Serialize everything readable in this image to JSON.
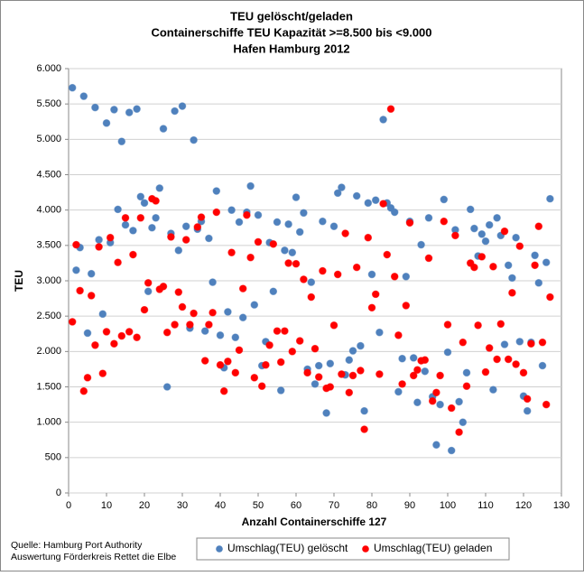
{
  "chart_data": {
    "type": "scatter",
    "title": [
      "TEU gelöscht/geladen",
      "Containerschiffe TEU Kapazität >=8.500 bis <9.000",
      "Hafen Hamburg 2012"
    ],
    "x_label": "Anzahl Containerschiffe 127",
    "y_label": "TEU",
    "notes": [
      "Quelle: Hamburg Port Authority",
      "Auswertung Förderkreis Rettet die Elbe"
    ],
    "x": [
      1,
      2,
      3,
      4,
      5,
      6,
      7,
      8,
      9,
      10,
      11,
      12,
      13,
      14,
      15,
      16,
      17,
      18,
      19,
      20,
      21,
      22,
      23,
      24,
      25,
      26,
      27,
      28,
      29,
      30,
      31,
      32,
      33,
      34,
      35,
      36,
      37,
      38,
      39,
      40,
      41,
      42,
      43,
      44,
      45,
      46,
      47,
      48,
      49,
      50,
      51,
      52,
      53,
      54,
      55,
      56,
      57,
      58,
      59,
      60,
      61,
      62,
      63,
      64,
      65,
      66,
      67,
      68,
      69,
      70,
      71,
      72,
      73,
      74,
      75,
      76,
      77,
      78,
      79,
      80,
      81,
      82,
      83,
      84,
      85,
      86,
      87,
      88,
      89,
      90,
      91,
      92,
      93,
      94,
      95,
      96,
      97,
      98,
      99,
      100,
      101,
      102,
      103,
      104,
      105,
      106,
      107,
      108,
      109,
      110,
      111,
      112,
      113,
      114,
      115,
      116,
      117,
      118,
      119,
      120,
      121,
      122,
      123,
      124,
      125,
      126,
      127
    ],
    "series": [
      {
        "name": "Umschlag(TEU) gelöscht",
        "color": "#4f81bd",
        "values": [
          5730,
          3150,
          3470,
          5610,
          2260,
          3100,
          5450,
          3580,
          2530,
          5230,
          3540,
          5420,
          4010,
          4970,
          3790,
          5380,
          3710,
          5430,
          4190,
          4100,
          2850,
          3750,
          3890,
          4310,
          5150,
          1500,
          3670,
          5400,
          3430,
          5470,
          3770,
          2330,
          4990,
          3730,
          3840,
          2290,
          3600,
          2980,
          4270,
          2230,
          1770,
          2560,
          4000,
          2200,
          3830,
          2480,
          3970,
          4340,
          2660,
          3930,
          1800,
          2140,
          3540,
          2850,
          3830,
          1450,
          3430,
          3800,
          3400,
          4180,
          3690,
          3960,
          1750,
          2980,
          1540,
          1800,
          3840,
          1130,
          1830,
          3770,
          4240,
          4320,
          1670,
          1880,
          2010,
          4200,
          2080,
          1160,
          4100,
          3090,
          4140,
          2270,
          5280,
          4100,
          4030,
          3970,
          1430,
          1900,
          3060,
          3840,
          1910,
          1280,
          3510,
          1720,
          3890,
          1360,
          680,
          1250,
          4150,
          1990,
          600,
          3720,
          1290,
          1000,
          1700,
          4010,
          3740,
          3350,
          3660,
          3560,
          3790,
          1460,
          3890,
          3640,
          2100,
          3220,
          3040,
          3610,
          2140,
          1370,
          1160,
          2130,
          3360,
          2970,
          1800,
          3260,
          4160
        ]
      },
      {
        "name": "Umschlag(TEU) geladen",
        "color": "#ff0000",
        "values": [
          2420,
          3510,
          2860,
          1440,
          1630,
          2790,
          2090,
          3480,
          1690,
          2280,
          3610,
          2110,
          3260,
          2220,
          3890,
          2280,
          3370,
          2200,
          3890,
          2590,
          2970,
          4160,
          4130,
          2880,
          2920,
          2270,
          3620,
          2380,
          2840,
          2630,
          3580,
          2380,
          2540,
          3760,
          3900,
          1870,
          2380,
          2550,
          3970,
          1810,
          1440,
          1860,
          3400,
          1700,
          2020,
          2890,
          3930,
          3330,
          1630,
          3550,
          1510,
          1810,
          2090,
          3520,
          2290,
          1850,
          2290,
          3250,
          2000,
          3240,
          2150,
          3020,
          1700,
          2770,
          2040,
          1640,
          3140,
          1480,
          1500,
          2370,
          3090,
          1680,
          3670,
          1420,
          1660,
          3190,
          1730,
          900,
          3610,
          2620,
          2810,
          1680,
          4090,
          3370,
          5430,
          3060,
          2230,
          1540,
          2650,
          3820,
          1660,
          1740,
          1870,
          1880,
          3320,
          1300,
          1420,
          1660,
          3840,
          2380,
          1200,
          3640,
          860,
          2130,
          1510,
          3250,
          3190,
          2370,
          3340,
          1710,
          2050,
          3200,
          1890,
          2390,
          3700,
          1890,
          2830,
          1820,
          3490,
          1700,
          1330,
          2110,
          3220,
          3770,
          2130,
          1250,
          2770
        ]
      }
    ],
    "xlim": [
      0,
      130
    ],
    "xticks": [
      0,
      10,
      20,
      30,
      40,
      50,
      60,
      70,
      80,
      90,
      100,
      110,
      120,
      130
    ],
    "ylim": [
      0,
      6000
    ],
    "yticks": [
      0,
      500,
      {
        "value": 1000,
        "label": "1.000"
      },
      {
        "value": 1500,
        "label": "1.500"
      },
      {
        "value": 2000,
        "label": "2.000"
      },
      {
        "value": 2500,
        "label": "2.500"
      },
      {
        "value": 3000,
        "label": "3.000"
      },
      {
        "value": 3500,
        "label": "3.500"
      },
      {
        "value": 4000,
        "label": "4.000"
      },
      {
        "value": 4500,
        "label": "4.500"
      },
      {
        "value": 5000,
        "label": "5.000"
      },
      {
        "value": 5500,
        "label": "5.500"
      },
      {
        "value": 6000,
        "label": "6.000"
      }
    ],
    "grid": true,
    "legend": "bottom"
  }
}
